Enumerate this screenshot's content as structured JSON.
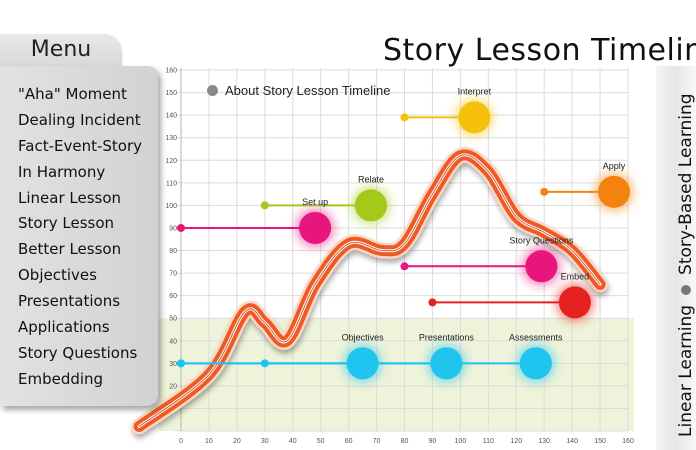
{
  "title": "Story Lesson Timeline",
  "menu": {
    "title": "Menu",
    "items": [
      {
        "label": "\"Aha\" Moment"
      },
      {
        "label": "Dealing Incident"
      },
      {
        "label": "Fact-Event-Story"
      },
      {
        "label": "In Harmony"
      },
      {
        "label": "Linear Lesson"
      },
      {
        "label": "Story Lesson"
      },
      {
        "label": "Better Lesson"
      },
      {
        "label": "Objectives"
      },
      {
        "label": "Presentations"
      },
      {
        "label": "Applications"
      },
      {
        "label": "Story Questions"
      },
      {
        "label": "Embedding"
      }
    ]
  },
  "about_link": "About Story Lesson Timeline",
  "side_labels": {
    "first": "Linear Learning",
    "second": "Story-Based Learning"
  },
  "colors": {
    "magenta": "#e8157c",
    "lime": "#a4c91a",
    "yellow": "#f6c10c",
    "orange": "#f5820f",
    "red": "#e5221d",
    "cyan": "#1fc4ef",
    "curve": "#ee5a24",
    "band": "#eef3d9"
  },
  "chart_data": {
    "type": "line",
    "x_ticks": [
      0,
      10,
      20,
      30,
      40,
      50,
      60,
      70,
      80,
      90,
      100,
      110,
      120,
      130,
      140,
      150,
      160
    ],
    "y_ticks": [
      10,
      20,
      30,
      40,
      50,
      60,
      70,
      80,
      90,
      100,
      110,
      120,
      130,
      140,
      150,
      160
    ],
    "xlim": [
      0,
      160
    ],
    "ylim": [
      0,
      160
    ],
    "grid": true,
    "curve": [
      {
        "x": -15,
        "y": 2
      },
      {
        "x": 10,
        "y": 25
      },
      {
        "x": 23,
        "y": 53
      },
      {
        "x": 30,
        "y": 48
      },
      {
        "x": 38,
        "y": 40
      },
      {
        "x": 48,
        "y": 65
      },
      {
        "x": 60,
        "y": 83
      },
      {
        "x": 72,
        "y": 80
      },
      {
        "x": 80,
        "y": 83
      },
      {
        "x": 90,
        "y": 105
      },
      {
        "x": 100,
        "y": 122
      },
      {
        "x": 110,
        "y": 115
      },
      {
        "x": 120,
        "y": 95
      },
      {
        "x": 130,
        "y": 88
      },
      {
        "x": 140,
        "y": 80
      },
      {
        "x": 150,
        "y": 65
      }
    ],
    "markers": [
      {
        "label": "Interpret",
        "x_start": 80,
        "x": 105,
        "y": 139,
        "color": "#f6c10c"
      },
      {
        "label": "Relate",
        "x_start": 30,
        "x": 68,
        "y": 100,
        "color": "#a4c91a"
      },
      {
        "label": "Apply",
        "x_start": 130,
        "x": 155,
        "y": 106,
        "color": "#f5820f"
      },
      {
        "label": "Set up",
        "x_start": 0,
        "x": 48,
        "y": 90,
        "color": "#e8157c"
      },
      {
        "label": "Story Questions",
        "x_start": 80,
        "x": 129,
        "y": 73,
        "color": "#e8157c"
      },
      {
        "label": "Embed",
        "x_start": 90,
        "x": 141,
        "y": 57,
        "color": "#e5221d"
      },
      {
        "label": "Objectives",
        "x_start": 0,
        "x": 65,
        "y": 30,
        "color": "#1fc4ef"
      },
      {
        "label": "Presentations",
        "x_start": 30,
        "x": 95,
        "y": 30,
        "color": "#1fc4ef"
      },
      {
        "label": "Assessments",
        "x_start": 0,
        "x": 127,
        "y": 30,
        "color": "#1fc4ef"
      }
    ],
    "band": {
      "y_from": 0,
      "y_to": 50
    }
  }
}
